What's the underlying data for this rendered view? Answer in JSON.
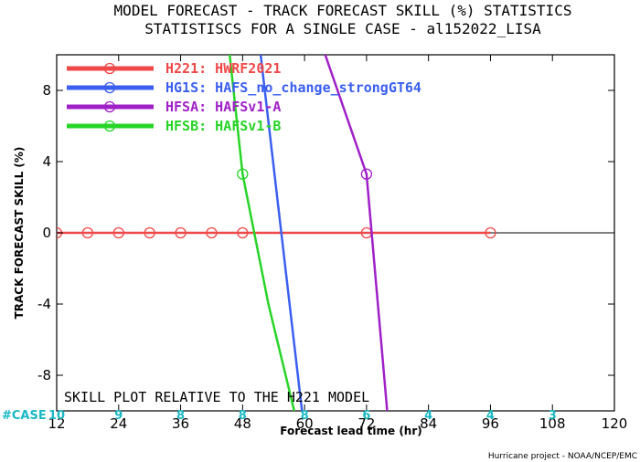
{
  "chart_data": {
    "type": "line",
    "title": "MODEL FORECAST - TRACK FORECAST SKILL (%) STATISTICS",
    "subtitle": "STATISTISCS FOR A SINGLE CASE - al152022_LISA",
    "xlabel": "Forecast lead time (hr)",
    "ylabel": "TRACK FORECAST SKILL (%)",
    "xlim": [
      12,
      120
    ],
    "ylim": [
      -10,
      10
    ],
    "xticks": [
      12,
      24,
      36,
      48,
      60,
      72,
      84,
      96,
      108,
      120
    ],
    "yticks": [
      -8,
      -4,
      0,
      4,
      8
    ],
    "grid": false,
    "legend_position": "top-left",
    "annotation": "SKILL PLOT RELATIVE TO THE H221 MODEL",
    "credit": "Hurricane project - NOAA/NCEP/EMC",
    "case_label": "#CASE",
    "case_counts": [
      {
        "x": 12,
        "n": "10"
      },
      {
        "x": 24,
        "n": "9"
      },
      {
        "x": 36,
        "n": "8"
      },
      {
        "x": 48,
        "n": "8"
      },
      {
        "x": 60,
        "n": "8"
      },
      {
        "x": 72,
        "n": "6"
      },
      {
        "x": 84,
        "n": "4"
      },
      {
        "x": 96,
        "n": "4"
      },
      {
        "x": 108,
        "n": "3"
      }
    ],
    "series": [
      {
        "code": "H221",
        "name": "HWRF2021",
        "color": "#f04848",
        "x": [
          12,
          18,
          24,
          30,
          36,
          42,
          48,
          54,
          60,
          66,
          72,
          78,
          84,
          90,
          96
        ],
        "y": [
          0,
          0,
          0,
          0,
          0,
          0,
          0,
          0,
          0,
          0,
          0,
          0,
          0,
          0,
          0
        ],
        "markers": [
          12,
          18,
          24,
          30,
          36,
          42,
          48,
          72,
          96
        ]
      },
      {
        "code": "HG1S",
        "name": "HAFS_no_change_strongGT64",
        "color": "#3a5ff0",
        "x": [
          51.5,
          55.5,
          59.5
        ],
        "y": [
          10,
          0,
          -10
        ],
        "markers": []
      },
      {
        "code": "HFSA",
        "name": "HAFSv1-A",
        "color": "#a020c8",
        "x": [
          64,
          72,
          76
        ],
        "y": [
          10,
          3.3,
          -10
        ],
        "markers": [
          72
        ]
      },
      {
        "code": "HFSB",
        "name": "HAFSv1-B",
        "color": "#28d428",
        "x": [
          45.5,
          48,
          53,
          58
        ],
        "y": [
          10,
          3.3,
          -4,
          -10
        ],
        "markers": [
          48
        ]
      }
    ]
  }
}
